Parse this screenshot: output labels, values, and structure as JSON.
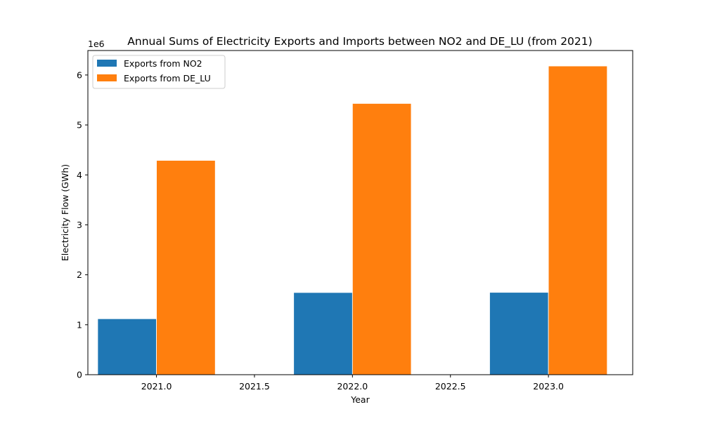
{
  "chart_data": {
    "type": "bar",
    "title": "Annual Sums of Electricity Exports and Imports between NO2 and DE_LU (from 2021)",
    "xlabel": "Year",
    "ylabel": "Electricity Flow (GWh)",
    "y_offset_text": "1e6",
    "categories": [
      2021,
      2022,
      2023
    ],
    "series": [
      {
        "name": "Exports from NO2",
        "color": "#1f77b4",
        "values": [
          1120000,
          1645000,
          1648000
        ]
      },
      {
        "name": "Exports from DE_LU",
        "color": "#ff7f0e",
        "values": [
          4290000,
          5430000,
          6180000
        ]
      }
    ],
    "xlim": [
      2020.65,
      2023.43
    ],
    "ylim": [
      0,
      6490000
    ],
    "x_ticks": [
      2021.0,
      2021.5,
      2022.0,
      2022.5,
      2023.0
    ],
    "x_tick_labels": [
      "2021.0",
      "2021.5",
      "2022.0",
      "2022.5",
      "2023.0"
    ],
    "y_ticks": [
      0,
      1000000,
      2000000,
      3000000,
      4000000,
      5000000,
      6000000
    ],
    "y_tick_labels": [
      "0",
      "1",
      "2",
      "3",
      "4",
      "5",
      "6"
    ],
    "bar_width": 0.3,
    "grid": false,
    "legend_position": "top-left"
  }
}
